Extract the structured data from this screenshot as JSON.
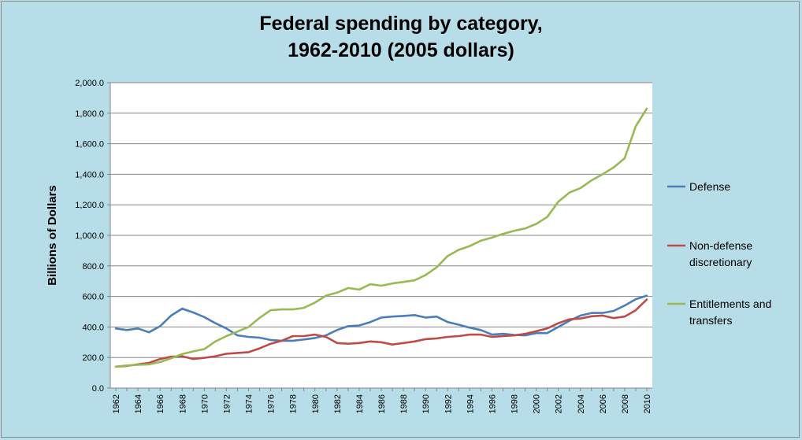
{
  "chart_data": {
    "type": "line",
    "title_line1": "Federal spending by category,",
    "title_line2": "1962-2010 (2005 dollars)",
    "ylabel": "Billions of Dollars",
    "xlabel": "",
    "ylim": [
      0,
      2000
    ],
    "ytick_step": 200,
    "ytick_labels": [
      "0.0",
      "200.0",
      "400.0",
      "600.0",
      "800.0",
      "1,000.0",
      "1,200.0",
      "1,400.0",
      "1,600.0",
      "1,800.0",
      "2,000.0"
    ],
    "xlim": [
      1962,
      2010
    ],
    "xtick_labels": [
      "1962",
      "1964",
      "1966",
      "1968",
      "1970",
      "1972",
      "1974",
      "1976",
      "1978",
      "1980",
      "1982",
      "1984",
      "1986",
      "1988",
      "1990",
      "1992",
      "1994",
      "1996",
      "1998",
      "2000",
      "2002",
      "2004",
      "2006",
      "2008",
      "2010"
    ],
    "grid": true,
    "legend_position": "right",
    "x": [
      1962,
      1963,
      1964,
      1965,
      1966,
      1967,
      1968,
      1969,
      1970,
      1971,
      1972,
      1973,
      1974,
      1975,
      1976,
      1977,
      1978,
      1979,
      1980,
      1981,
      1982,
      1983,
      1984,
      1985,
      1986,
      1987,
      1988,
      1989,
      1990,
      1991,
      1992,
      1993,
      1994,
      1995,
      1996,
      1997,
      1998,
      1999,
      2000,
      2001,
      2002,
      2003,
      2004,
      2005,
      2006,
      2007,
      2008,
      2009,
      2010
    ],
    "series": [
      {
        "name": "Defense",
        "color": "#4a7ebb",
        "values": [
          390,
          380,
          390,
          365,
          405,
          475,
          520,
          495,
          465,
          425,
          390,
          345,
          335,
          330,
          315,
          310,
          310,
          318,
          328,
          345,
          380,
          405,
          410,
          432,
          462,
          468,
          472,
          478,
          462,
          468,
          432,
          415,
          395,
          380,
          350,
          355,
          348,
          345,
          360,
          360,
          400,
          440,
          475,
          492,
          492,
          505,
          540,
          582,
          605
        ]
      },
      {
        "name": "Non-defense discretionary",
        "legend_lines": [
          "Non-defense",
          "discretionary"
        ],
        "color": "#be4b48",
        "values": [
          140,
          145,
          155,
          165,
          190,
          205,
          208,
          190,
          198,
          208,
          225,
          230,
          235,
          260,
          290,
          310,
          340,
          340,
          350,
          335,
          295,
          290,
          295,
          305,
          300,
          285,
          295,
          305,
          320,
          325,
          335,
          340,
          350,
          350,
          335,
          340,
          345,
          355,
          372,
          390,
          425,
          450,
          455,
          470,
          475,
          458,
          468,
          510,
          580
        ]
      },
      {
        "name": "Entitlements and transfers",
        "legend_lines": [
          "Entitlements and",
          "transfers"
        ],
        "color": "#98b954",
        "values": [
          140,
          148,
          152,
          155,
          170,
          195,
          222,
          240,
          255,
          305,
          340,
          370,
          400,
          460,
          510,
          515,
          515,
          525,
          560,
          605,
          625,
          655,
          645,
          680,
          670,
          685,
          695,
          705,
          740,
          790,
          865,
          905,
          930,
          965,
          985,
          1010,
          1030,
          1045,
          1075,
          1120,
          1220,
          1280,
          1310,
          1360,
          1400,
          1445,
          1505,
          1715,
          1830
        ]
      }
    ]
  }
}
